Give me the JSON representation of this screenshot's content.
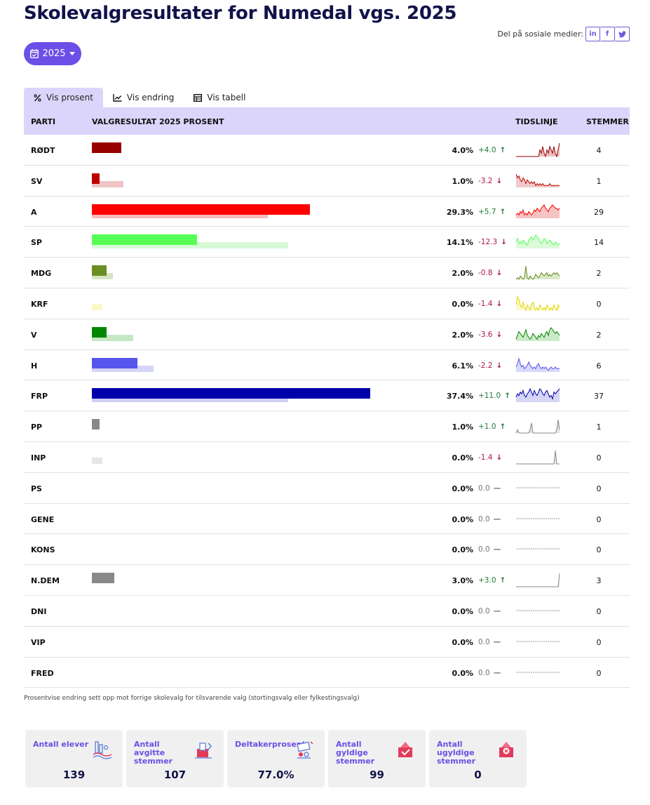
{
  "page": {
    "title": "Skolevalgresultater for Numedal vgs. 2025",
    "share_label": "Del på sosiale medier:",
    "share_buttons": [
      "in",
      "f",
      "t"
    ],
    "year_selector": "2025"
  },
  "tabs": [
    {
      "label": "Vis prosent",
      "icon": "percent-icon",
      "active": true
    },
    {
      "label": "Vis endring",
      "icon": "line-chart-icon",
      "active": false
    },
    {
      "label": "Vis tabell",
      "icon": "table-icon",
      "active": false
    }
  ],
  "table": {
    "headers": {
      "party": "PARTI",
      "result": "VALGRESULTAT 2025 PROSENT",
      "timeline": "TIDSLINJE",
      "votes": "STEMMER"
    },
    "rows": [
      {
        "party": "RØDT",
        "pct": "4.0%",
        "change": "+4.0",
        "dir": "up",
        "votes": "4",
        "value": 4.0,
        "previous": 0.0,
        "color": "#990000",
        "light": "#e8b8b8",
        "spark": [
          0,
          0,
          0,
          0,
          0,
          0,
          0,
          0,
          0,
          0,
          0,
          0,
          0,
          0,
          0,
          0,
          0,
          2,
          1,
          3,
          1,
          0,
          2,
          1,
          3,
          2,
          1,
          3,
          1,
          0,
          2,
          4
        ]
      },
      {
        "party": "SV",
        "pct": "1.0%",
        "change": "-3.2",
        "dir": "down",
        "votes": "1",
        "value": 1.0,
        "previous": 4.2,
        "color": "#bb0000",
        "light": "#f0c4c4",
        "spark": [
          7,
          5,
          6,
          4,
          3,
          5,
          4,
          2,
          4,
          3,
          2,
          3,
          2,
          3,
          1,
          2,
          1,
          2,
          1,
          2,
          1,
          1,
          1,
          1,
          2,
          1,
          1,
          1,
          1,
          1,
          1,
          1
        ]
      },
      {
        "party": "A",
        "pct": "29.3%",
        "change": "+5.7",
        "dir": "up",
        "votes": "29",
        "value": 29.3,
        "previous": 23.6,
        "color": "#ff0000",
        "light": "#f5bcbc",
        "spark": [
          2,
          3,
          2,
          4,
          3,
          5,
          2,
          3,
          2,
          4,
          3,
          2,
          3,
          5,
          4,
          6,
          5,
          4,
          6,
          7,
          8,
          6,
          5,
          4,
          6,
          7,
          8,
          7,
          6,
          6,
          5,
          6
        ]
      },
      {
        "party": "SP",
        "pct": "14.1%",
        "change": "-12.3",
        "dir": "down",
        "votes": "14",
        "value": 14.1,
        "previous": 26.4,
        "color": "#55ff55",
        "light": "#d6fad6",
        "spark": [
          4,
          6,
          3,
          4,
          3,
          5,
          4,
          3,
          2,
          5,
          6,
          7,
          5,
          6,
          8,
          7,
          6,
          4,
          3,
          4,
          6,
          5,
          3,
          4,
          5,
          4,
          3,
          2,
          4,
          3,
          2,
          3
        ]
      },
      {
        "party": "MDG",
        "pct": "2.0%",
        "change": "-0.8",
        "dir": "down",
        "votes": "2",
        "value": 2.0,
        "previous": 2.8,
        "color": "#6b8e23",
        "light": "#d6e5c4",
        "spark": [
          0,
          1,
          0,
          2,
          1,
          0,
          1,
          8,
          1,
          0,
          2,
          1,
          0,
          1,
          3,
          2,
          1,
          2,
          4,
          3,
          2,
          3,
          4,
          2,
          3,
          2,
          3,
          4,
          3,
          4,
          3,
          2
        ]
      },
      {
        "party": "KRF",
        "pct": "0.0%",
        "change": "-1.4",
        "dir": "down",
        "votes": "0",
        "value": 0.0,
        "previous": 1.4,
        "color": "#ffff55",
        "light": "#fbf7c8",
        "spark": [
          2,
          5,
          4,
          2,
          1,
          3,
          1,
          0,
          2,
          1,
          0,
          2,
          3,
          1,
          0,
          1,
          0,
          2,
          1,
          0,
          1,
          0,
          2,
          1,
          0,
          1,
          0,
          2,
          1,
          0,
          2,
          1
        ]
      },
      {
        "party": "V",
        "pct": "2.0%",
        "change": "-3.6",
        "dir": "down",
        "votes": "2",
        "value": 2.0,
        "previous": 5.6,
        "color": "#008800",
        "light": "#c4e8c4",
        "spark": [
          1,
          3,
          5,
          4,
          3,
          2,
          4,
          6,
          3,
          2,
          1,
          2,
          4,
          3,
          2,
          1,
          3,
          2,
          4,
          3,
          2,
          4,
          5,
          3,
          6,
          7,
          6,
          5,
          4,
          5,
          4,
          3
        ]
      },
      {
        "party": "H",
        "pct": "6.1%",
        "change": "-2.2",
        "dir": "down",
        "votes": "6",
        "value": 6.1,
        "previous": 8.3,
        "color": "#5555ee",
        "light": "#d4d4fa",
        "spark": [
          3,
          5,
          8,
          5,
          3,
          4,
          2,
          3,
          4,
          6,
          4,
          3,
          2,
          3,
          2,
          4,
          5,
          3,
          2,
          3,
          2,
          3,
          2,
          1,
          2,
          3,
          2,
          2,
          3,
          2,
          2,
          2
        ]
      },
      {
        "party": "FRP",
        "pct": "37.4%",
        "change": "+11.0",
        "dir": "up",
        "votes": "37",
        "value": 37.4,
        "previous": 26.4,
        "color": "#0000aa",
        "light": "#d0d0f4",
        "spark": [
          3,
          5,
          4,
          6,
          5,
          7,
          4,
          3,
          5,
          6,
          8,
          6,
          4,
          7,
          5,
          4,
          6,
          8,
          7,
          5,
          4,
          6,
          7,
          5,
          3,
          4,
          2,
          6,
          5,
          6,
          7,
          8
        ]
      },
      {
        "party": "PP",
        "pct": "1.0%",
        "change": "+1.0",
        "dir": "up",
        "votes": "1",
        "value": 1.0,
        "previous": 0.0,
        "color": "#888888",
        "light": "#e0e0e0",
        "spark": [
          0,
          2,
          0,
          0,
          0,
          0,
          0,
          0,
          0,
          0,
          2,
          6,
          0,
          0,
          0,
          0,
          0,
          0,
          0,
          0,
          0,
          0,
          0,
          0,
          0,
          0,
          0,
          0,
          0,
          2,
          8,
          2
        ]
      },
      {
        "party": "INP",
        "pct": "0.0%",
        "change": "-1.4",
        "dir": "down",
        "votes": "0",
        "value": 0.0,
        "previous": 1.4,
        "color": "#888888",
        "light": "#e6e6e6",
        "spark": [
          0,
          0,
          0,
          0,
          0,
          0,
          0,
          0,
          0,
          0,
          0,
          0,
          0,
          0,
          0,
          0,
          0,
          0,
          0,
          0,
          0,
          0,
          0,
          0,
          0,
          0,
          0,
          0,
          6,
          0,
          0,
          0
        ]
      },
      {
        "party": "PS",
        "pct": "0.0%",
        "change": "0.0",
        "dir": "zero",
        "votes": "0",
        "value": 0.0,
        "previous": 0.0,
        "color": "#888888",
        "light": "#e6e6e6",
        "spark": []
      },
      {
        "party": "GENE",
        "pct": "0.0%",
        "change": "0.0",
        "dir": "zero",
        "votes": "0",
        "value": 0.0,
        "previous": 0.0,
        "color": "#888888",
        "light": "#e6e6e6",
        "spark": []
      },
      {
        "party": "KONS",
        "pct": "0.0%",
        "change": "0.0",
        "dir": "zero",
        "votes": "0",
        "value": 0.0,
        "previous": 0.0,
        "color": "#888888",
        "light": "#e6e6e6",
        "spark": []
      },
      {
        "party": "N.DEM",
        "pct": "3.0%",
        "change": "+3.0",
        "dir": "up",
        "votes": "3",
        "value": 3.0,
        "previous": 0.0,
        "color": "#888888",
        "light": "#e6e6e6",
        "spark": [
          0,
          0,
          0,
          0,
          0,
          0,
          0,
          0,
          0,
          0,
          0,
          0,
          0,
          0,
          0,
          0,
          0,
          0,
          0,
          0,
          0,
          0,
          0,
          0,
          0,
          0,
          0,
          0,
          0,
          0,
          0,
          8
        ]
      },
      {
        "party": "DNI",
        "pct": "0.0%",
        "change": "0.0",
        "dir": "zero",
        "votes": "0",
        "value": 0.0,
        "previous": 0.0,
        "color": "#888888",
        "light": "#e6e6e6",
        "spark": []
      },
      {
        "party": "VIP",
        "pct": "0.0%",
        "change": "0.0",
        "dir": "zero",
        "votes": "0",
        "value": 0.0,
        "previous": 0.0,
        "color": "#888888",
        "light": "#e6e6e6",
        "spark": []
      },
      {
        "party": "FRED",
        "pct": "0.0%",
        "change": "0.0",
        "dir": "zero",
        "votes": "0",
        "value": 0.0,
        "previous": 0.0,
        "color": "#888888",
        "light": "#e6e6e6",
        "spark": []
      }
    ]
  },
  "note": "Prosentvise endring sett opp mot forrige skolevalg for tilsvarende valg (stortingsvalg eller fylkestingsvalg)",
  "stats": [
    {
      "label": "Antall elever",
      "value": "139",
      "icon": "students-icon"
    },
    {
      "label": "Antall avgitte stemmer",
      "value": "107",
      "icon": "ballot-box-icon"
    },
    {
      "label": "Deltakerprosent",
      "value": "77.0%",
      "icon": "participation-icon"
    },
    {
      "label": "Antall gyldige stemmer",
      "value": "99",
      "icon": "valid-vote-icon"
    },
    {
      "label": "Antall ugyldige stemmer",
      "value": "0",
      "icon": "invalid-vote-icon"
    }
  ],
  "colors": {
    "accent": "#6b4fe6",
    "header_bg": "#dcd5fb",
    "title": "#12124a",
    "up": "#1f7a3a",
    "down": "#b0124f"
  }
}
